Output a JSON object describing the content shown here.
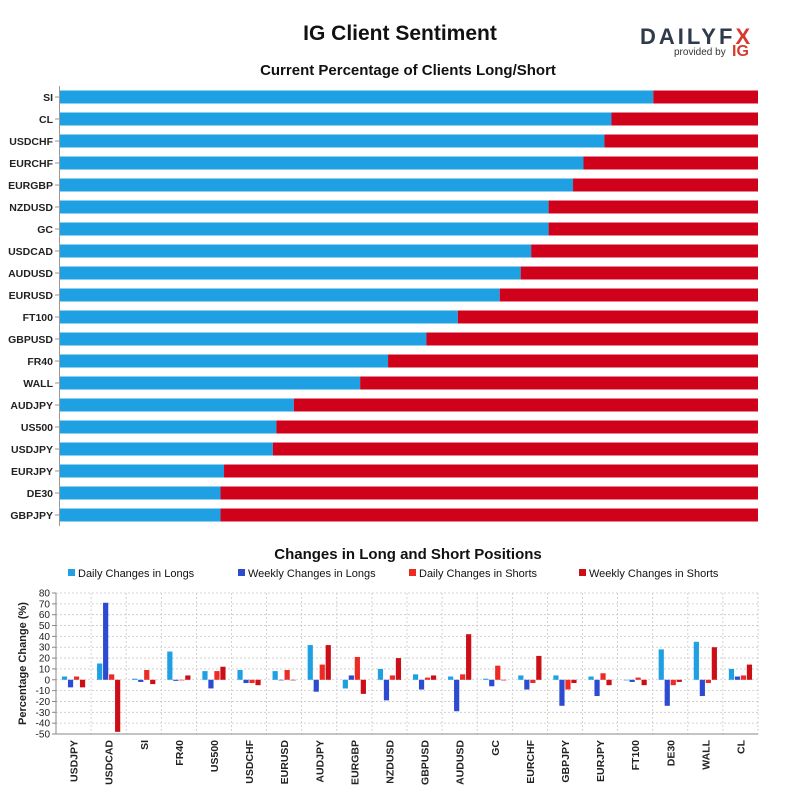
{
  "title": "IG Client Sentiment",
  "logo": {
    "word_a": "DAILY",
    "word_b": "F",
    "word_c": "X",
    "provided_by": "provided by",
    "ig": "IG"
  },
  "colors": {
    "long": "#1fa0e3",
    "short": "#d0021b",
    "weekly_long": "#2c4bd1",
    "daily_short": "#ee2a24",
    "weekly_short": "#cc0e17"
  },
  "chart_data": [
    {
      "type": "bar",
      "orientation": "horizontal-stacked",
      "title": "Current Percentage of Clients Long/Short",
      "categories": [
        "SI",
        "CL",
        "USDCHF",
        "EURCHF",
        "EURGBP",
        "NZDUSD",
        "GC",
        "USDCAD",
        "AUDUSD",
        "EURUSD",
        "FT100",
        "GBPUSD",
        "FR40",
        "WALL",
        "AUDJPY",
        "US500",
        "USDJPY",
        "EURJPY",
        "DE30",
        "GBPJPY"
      ],
      "series": [
        {
          "name": "Long",
          "values": [
            85,
            79,
            78,
            75,
            73.5,
            70,
            70,
            67.5,
            66,
            63,
            57,
            52.5,
            47,
            43,
            33.5,
            31,
            30.5,
            23.5,
            23,
            23
          ]
        },
        {
          "name": "Short",
          "values": [
            15,
            21,
            22,
            25,
            26.5,
            30,
            30,
            32.5,
            34,
            37,
            43,
            47.5,
            53,
            57,
            66.5,
            69,
            69.5,
            76.5,
            77,
            77
          ]
        }
      ],
      "xlim": [
        0,
        100
      ]
    },
    {
      "type": "bar",
      "title": "Changes in Long and Short Positions",
      "ylabel": "Percentage Change (%)",
      "ylim": [
        -50,
        80
      ],
      "yticks": [
        "-50",
        "-40",
        "-30",
        "-20",
        "-10",
        "0",
        "10",
        "20",
        "30",
        "40",
        "50",
        "60",
        "70",
        "80"
      ],
      "legend_position": "top",
      "categories": [
        "USDJPY",
        "USDCAD",
        "SI",
        "FR40",
        "US500",
        "USDCHF",
        "EURUSD",
        "AUDJPY",
        "EURGBP",
        "NZDUSD",
        "GBPUSD",
        "AUDUSD",
        "GC",
        "EURCHF",
        "GBPJPY",
        "EURJPY",
        "FT100",
        "DE30",
        "WALL",
        "CL"
      ],
      "series": [
        {
          "name": "Daily Changes in Longs",
          "values": [
            3,
            15,
            1,
            26,
            8,
            9,
            8,
            32,
            -8,
            10,
            5,
            3,
            1,
            4,
            4,
            3,
            0,
            28,
            35,
            10
          ]
        },
        {
          "name": "Weekly Changes in Longs",
          "values": [
            -7,
            71,
            -2,
            -1,
            -8,
            -3,
            0,
            -11,
            4,
            -19,
            -9,
            -29,
            -6,
            -9,
            -24,
            -15,
            -2,
            -24,
            -15,
            3
          ]
        },
        {
          "name": "Daily Changes in Shorts",
          "values": [
            3,
            5,
            9,
            0,
            8,
            -3,
            9,
            14,
            21,
            4,
            2,
            5,
            13,
            -3,
            -9,
            6,
            2,
            -5,
            -3,
            4
          ]
        },
        {
          "name": "Weekly Changes in Shorts",
          "values": [
            -7,
            -48,
            -4,
            4,
            12,
            -5,
            0,
            32,
            -13,
            20,
            4,
            42,
            0,
            22,
            -3,
            -5,
            -5,
            -2,
            30,
            14
          ]
        }
      ]
    }
  ]
}
